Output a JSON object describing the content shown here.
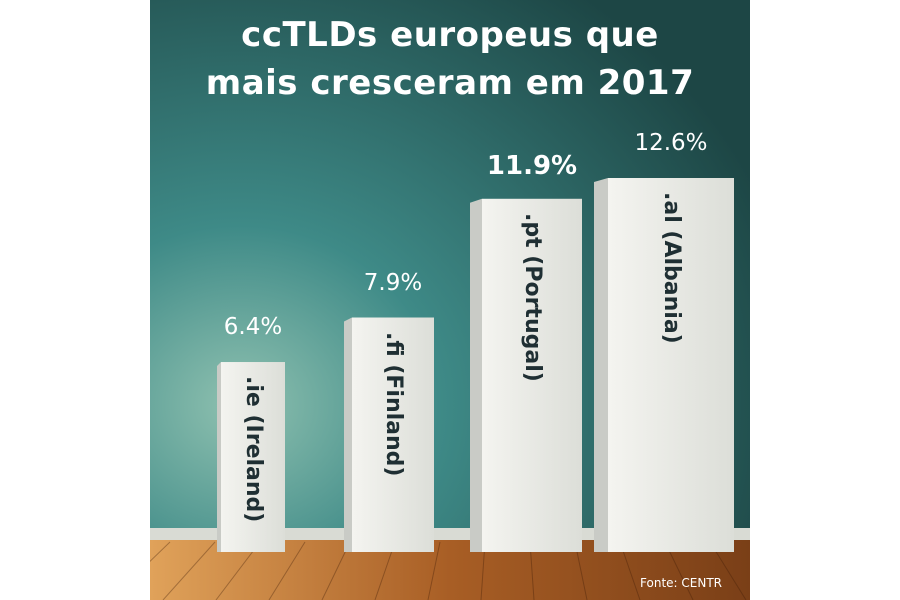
{
  "chart_data": {
    "type": "bar",
    "title_lines": [
      "ccTLDs europeus que",
      "mais cresceram em 2017"
    ],
    "categories": [
      ".ie (Ireland)",
      ".fi (Finland)",
      ".pt (Portugal)",
      ".al (Albania)"
    ],
    "values": [
      6.4,
      7.9,
      11.9,
      12.6
    ],
    "value_labels": [
      "6.4%",
      "7.9%",
      "11.9%",
      "12.6%"
    ],
    "highlight_index": 2,
    "source": "Fonte: CENTR"
  },
  "colors": {
    "wall": "#3e8a87",
    "wall_dark": "#24514f",
    "floor": "#b26a2c",
    "column_front": "#eeeeea",
    "column_side": "#c9cbc6",
    "label_text": "#1f2f33"
  }
}
